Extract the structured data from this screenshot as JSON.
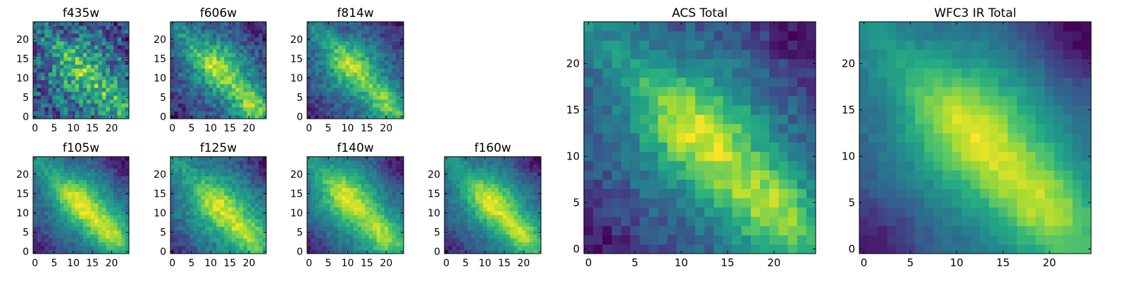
{
  "chart_data": [
    {
      "type": "heatmap",
      "title": "f435w",
      "xticks": [
        "0",
        "5",
        "10",
        "15",
        "20"
      ],
      "yticks": [
        "0",
        "5",
        "10",
        "15",
        "20"
      ],
      "xlim": [
        -0.5,
        24.5
      ],
      "ylim": [
        -0.5,
        24.5
      ],
      "pattern": {
        "peak": [
          12,
          12
        ],
        "secondary": [
          21,
          2
        ],
        "base": 0.5,
        "peak_amp": 0.4,
        "secondary_amp": 0.25,
        "sigma": 6,
        "ridge_sigma": 2.2,
        "ridge_amp": 0.15,
        "dark_corner_amp": 0.05,
        "noise": 0.55,
        "seed": 11
      }
    },
    {
      "type": "heatmap",
      "title": "f606w",
      "xticks": [
        "0",
        "5",
        "10",
        "15",
        "20"
      ],
      "yticks": [
        "0",
        "5",
        "10",
        "15",
        "20"
      ],
      "xlim": [
        -0.5,
        24.5
      ],
      "ylim": [
        -0.5,
        24.5
      ],
      "pattern": {
        "peak": [
          12,
          13
        ],
        "secondary": [
          21,
          3
        ],
        "base": 0.3,
        "peak_amp": 0.55,
        "secondary_amp": 0.45,
        "sigma": 5.5,
        "ridge_sigma": 2.4,
        "ridge_amp": 0.3,
        "dark_corner_amp": 0.2,
        "noise": 0.35,
        "seed": 23
      }
    },
    {
      "type": "heatmap",
      "title": "f814w",
      "xticks": [
        "0",
        "5",
        "10",
        "15",
        "20"
      ],
      "yticks": [
        "0",
        "5",
        "10",
        "15",
        "20"
      ],
      "xlim": [
        -0.5,
        24.5
      ],
      "ylim": [
        -0.5,
        24.5
      ],
      "pattern": {
        "peak": [
          11,
          13
        ],
        "secondary": [
          20,
          3
        ],
        "base": 0.3,
        "peak_amp": 0.6,
        "secondary_amp": 0.45,
        "sigma": 5.5,
        "ridge_sigma": 2.4,
        "ridge_amp": 0.3,
        "dark_corner_amp": 0.25,
        "noise": 0.32,
        "seed": 37
      }
    },
    {
      "type": "heatmap",
      "title": "f105w",
      "xticks": [
        "0",
        "5",
        "10",
        "15",
        "20"
      ],
      "yticks": [
        "0",
        "5",
        "10",
        "15",
        "20"
      ],
      "xlim": [
        -0.5,
        24.5
      ],
      "ylim": [
        -0.5,
        24.5
      ],
      "pattern": {
        "peak": [
          12,
          13
        ],
        "secondary": [
          20,
          5
        ],
        "base": 0.25,
        "peak_amp": 0.65,
        "secondary_amp": 0.5,
        "sigma": 5.5,
        "ridge_sigma": 2.6,
        "ridge_amp": 0.35,
        "dark_corner_amp": 0.35,
        "noise": 0.22,
        "seed": 41
      }
    },
    {
      "type": "heatmap",
      "title": "f125w",
      "xticks": [
        "0",
        "5",
        "10",
        "15",
        "20"
      ],
      "yticks": [
        "0",
        "5",
        "10",
        "15",
        "20"
      ],
      "xlim": [
        -0.5,
        24.5
      ],
      "ylim": [
        -0.5,
        24.5
      ],
      "pattern": {
        "peak": [
          12,
          12
        ],
        "secondary": [
          20,
          4
        ],
        "base": 0.3,
        "peak_amp": 0.6,
        "secondary_amp": 0.45,
        "sigma": 6,
        "ridge_sigma": 2.6,
        "ridge_amp": 0.3,
        "dark_corner_amp": 0.35,
        "noise": 0.28,
        "seed": 53
      }
    },
    {
      "type": "heatmap",
      "title": "f140w",
      "xticks": [
        "0",
        "5",
        "10",
        "15",
        "20"
      ],
      "yticks": [
        "0",
        "5",
        "10",
        "15",
        "20"
      ],
      "xlim": [
        -0.5,
        24.5
      ],
      "ylim": [
        -0.5,
        24.5
      ],
      "pattern": {
        "peak": [
          10,
          14
        ],
        "secondary": [
          19,
          4
        ],
        "base": 0.3,
        "peak_amp": 0.65,
        "secondary_amp": 0.5,
        "sigma": 6,
        "ridge_sigma": 2.8,
        "ridge_amp": 0.3,
        "dark_corner_amp": 0.4,
        "noise": 0.22,
        "seed": 67
      }
    },
    {
      "type": "heatmap",
      "title": "f160w",
      "xticks": [
        "0",
        "5",
        "10",
        "15",
        "20"
      ],
      "yticks": [
        "0",
        "5",
        "10",
        "15",
        "20"
      ],
      "xlim": [
        -0.5,
        24.5
      ],
      "ylim": [
        -0.5,
        24.5
      ],
      "pattern": {
        "peak": [
          12,
          13
        ],
        "secondary": [
          20,
          4
        ],
        "base": 0.25,
        "peak_amp": 0.7,
        "secondary_amp": 0.5,
        "sigma": 5.5,
        "ridge_sigma": 2.6,
        "ridge_amp": 0.35,
        "dark_corner_amp": 0.4,
        "noise": 0.22,
        "seed": 79
      }
    },
    {
      "type": "heatmap",
      "title": "ACS Total",
      "xticks": [
        "0",
        "5",
        "10",
        "15",
        "20"
      ],
      "yticks": [
        "0",
        "5",
        "10",
        "15",
        "20"
      ],
      "xlim": [
        -0.5,
        24.5
      ],
      "ylim": [
        -0.5,
        24.5
      ],
      "pattern": {
        "peak": [
          12,
          13
        ],
        "secondary": [
          20,
          4
        ],
        "base": 0.3,
        "peak_amp": 0.62,
        "secondary_amp": 0.48,
        "sigma": 5.5,
        "ridge_sigma": 2.6,
        "ridge_amp": 0.32,
        "dark_corner_amp": 0.3,
        "noise": 0.25,
        "seed": 97
      }
    },
    {
      "type": "heatmap",
      "title": "WFC3 IR Total",
      "xticks": [
        "0",
        "5",
        "10",
        "15",
        "20"
      ],
      "yticks": [
        "0",
        "5",
        "10",
        "15",
        "20"
      ],
      "xlim": [
        -0.5,
        24.5
      ],
      "ylim": [
        -0.5,
        24.5
      ],
      "pattern": {
        "peak": [
          12,
          13
        ],
        "secondary": [
          20,
          4
        ],
        "base": 0.25,
        "peak_amp": 0.68,
        "secondary_amp": 0.5,
        "sigma": 6,
        "ridge_sigma": 2.8,
        "ridge_amp": 0.3,
        "dark_corner_amp": 0.45,
        "noise": 0.12,
        "seed": 113
      }
    }
  ],
  "colormap": [
    "#440154",
    "#472c7a",
    "#3b528b",
    "#2c728e",
    "#21908d",
    "#27ad81",
    "#5cc863",
    "#aadc32",
    "#fde725"
  ]
}
